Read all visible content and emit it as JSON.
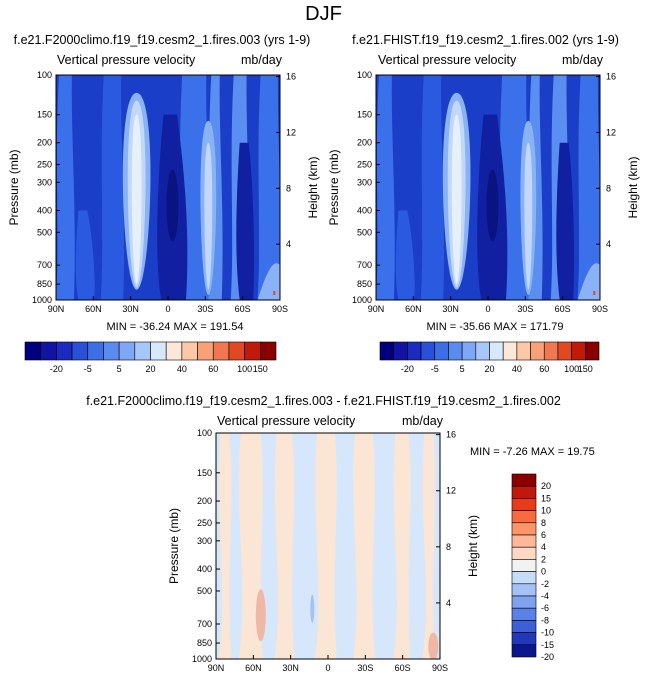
{
  "page_title": "DJF",
  "chart_data": [
    {
      "type": "heatmap",
      "title": "f.e21.F2000climo.f19_f19.cesm2_1.fires.003 (yrs 1-9)",
      "subtitle_left": "Vertical pressure velocity",
      "subtitle_right": "mb/day",
      "xlabel": "",
      "ylabel": "Pressure (mb)",
      "ylabel_right": "Height (km)",
      "x_ticks": [
        "90N",
        "60N",
        "30N",
        "0",
        "30S",
        "60S",
        "90S"
      ],
      "y_ticks": [
        "100",
        "150",
        "200",
        "250",
        "300",
        "400",
        "500",
        "700",
        "850",
        "1000"
      ],
      "y_right_ticks": [
        "16",
        "12",
        "8",
        "4"
      ],
      "ylim": [
        1000,
        100
      ],
      "y_scale": "log",
      "stats": "MIN = -36.24   MAX = 191.54",
      "min": -36.24,
      "max": 191.54,
      "colorbar_labels": [
        "-20",
        "-5",
        "5",
        "20",
        "40",
        "60",
        "100",
        "150"
      ]
    },
    {
      "type": "heatmap",
      "title": "f.e21.FHIST.f19_f19.cesm2_1.fires.002 (yrs 1-9)",
      "subtitle_left": "Vertical pressure velocity",
      "subtitle_right": "mb/day",
      "xlabel": "",
      "ylabel": "Pressure (mb)",
      "ylabel_right": "Height (km)",
      "x_ticks": [
        "90N",
        "60N",
        "30N",
        "0",
        "30S",
        "60S",
        "90S"
      ],
      "y_ticks": [
        "100",
        "150",
        "200",
        "250",
        "300",
        "400",
        "500",
        "700",
        "850",
        "1000"
      ],
      "y_right_ticks": [
        "16",
        "12",
        "8",
        "4"
      ],
      "ylim": [
        1000,
        100
      ],
      "y_scale": "log",
      "stats": "MIN = -35.66   MAX = 171.79",
      "min": -35.66,
      "max": 171.79,
      "colorbar_labels": [
        "-20",
        "-5",
        "5",
        "20",
        "40",
        "60",
        "100",
        "150"
      ]
    },
    {
      "type": "heatmap",
      "title": "f.e21.F2000climo.f19_f19.cesm2_1.fires.003 - f.e21.FHIST.f19_f19.cesm2_1.fires.002",
      "subtitle_left": "Vertical pressure velocity",
      "subtitle_right": "mb/day",
      "xlabel": "",
      "ylabel": "Pressure (mb)",
      "ylabel_right": "Height (km)",
      "x_ticks": [
        "90N",
        "60N",
        "30N",
        "0",
        "30S",
        "60S",
        "90S"
      ],
      "y_ticks": [
        "100",
        "150",
        "200",
        "250",
        "300",
        "400",
        "500",
        "700",
        "850",
        "1000"
      ],
      "y_right_ticks": [
        "16",
        "12",
        "8",
        "4"
      ],
      "ylim": [
        1000,
        100
      ],
      "y_scale": "log",
      "stats": "MIN = -7.26   MAX = 19.75",
      "min": -7.26,
      "max": 19.75,
      "colorbar_labels": [
        "20",
        "15",
        "10",
        "8",
        "6",
        "4",
        "2",
        "0",
        "-2",
        "-4",
        "-6",
        "-8",
        "-10",
        "-15",
        "-20"
      ]
    }
  ],
  "colors": {
    "colorbar_top": [
      "#00007f",
      "#1212a3",
      "#1b2bc0",
      "#2850d8",
      "#3c6ee6",
      "#5a8cf0",
      "#7ea8f6",
      "#a8c6fa",
      "#d8e8fc",
      "#fce8d8",
      "#fcc8a8",
      "#f8a078",
      "#f07850",
      "#e04a22",
      "#c01a0a",
      "#8a0000"
    ],
    "colorbar_diff": [
      "#8a0000",
      "#c0180a",
      "#e83c16",
      "#f86a40",
      "#fc966a",
      "#fcb898",
      "#fdd8c4",
      "#f2f2f2",
      "#c6dcf8",
      "#a4c2f6",
      "#7ea2f0",
      "#5a82e6",
      "#3c60d6",
      "#2238b8",
      "#0c1690"
    ],
    "wind_field": [
      "#1a3ec8",
      "#2a5ae0",
      "#3a70ea",
      "#5a8ef0",
      "#8ab2f6",
      "#c2d8fa",
      "#e6f0fd",
      "#1020a0",
      "#0a1480"
    ],
    "diff_field": [
      "#d6e6fb",
      "#fbe6d6",
      "#f0b8a4",
      "#7a9cee"
    ]
  }
}
